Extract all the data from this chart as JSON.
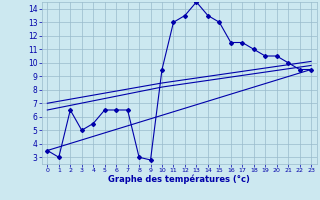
{
  "xlabel": "Graphe des températures (°c)",
  "bg_color": "#cce8f0",
  "line_color": "#0000aa",
  "grid_color": "#99bbcc",
  "xlim": [
    -0.5,
    23.5
  ],
  "ylim": [
    2.5,
    14.5
  ],
  "xticks": [
    0,
    1,
    2,
    3,
    4,
    5,
    6,
    7,
    8,
    9,
    10,
    11,
    12,
    13,
    14,
    15,
    16,
    17,
    18,
    19,
    20,
    21,
    22,
    23
  ],
  "yticks": [
    3,
    4,
    5,
    6,
    7,
    8,
    9,
    10,
    11,
    12,
    13,
    14
  ],
  "series1_x": [
    0,
    1,
    2,
    3,
    4,
    5,
    6,
    7,
    8,
    9,
    10,
    11,
    12,
    13,
    14,
    15,
    16,
    17,
    18,
    19,
    20,
    21,
    22,
    23
  ],
  "series1_y": [
    3.5,
    3.0,
    6.5,
    5.0,
    5.5,
    6.5,
    6.5,
    6.5,
    3.0,
    2.8,
    9.5,
    13.0,
    13.5,
    14.5,
    13.5,
    13.0,
    11.5,
    11.5,
    11.0,
    10.5,
    10.5,
    10.0,
    9.5,
    9.5
  ],
  "series2_x": [
    0,
    10,
    23
  ],
  "series2_y": [
    6.5,
    8.2,
    9.8
  ],
  "series3_x": [
    0,
    10,
    23
  ],
  "series3_y": [
    7.0,
    8.5,
    10.1
  ],
  "series4_x": [
    0,
    23
  ],
  "series4_y": [
    3.5,
    9.5
  ]
}
